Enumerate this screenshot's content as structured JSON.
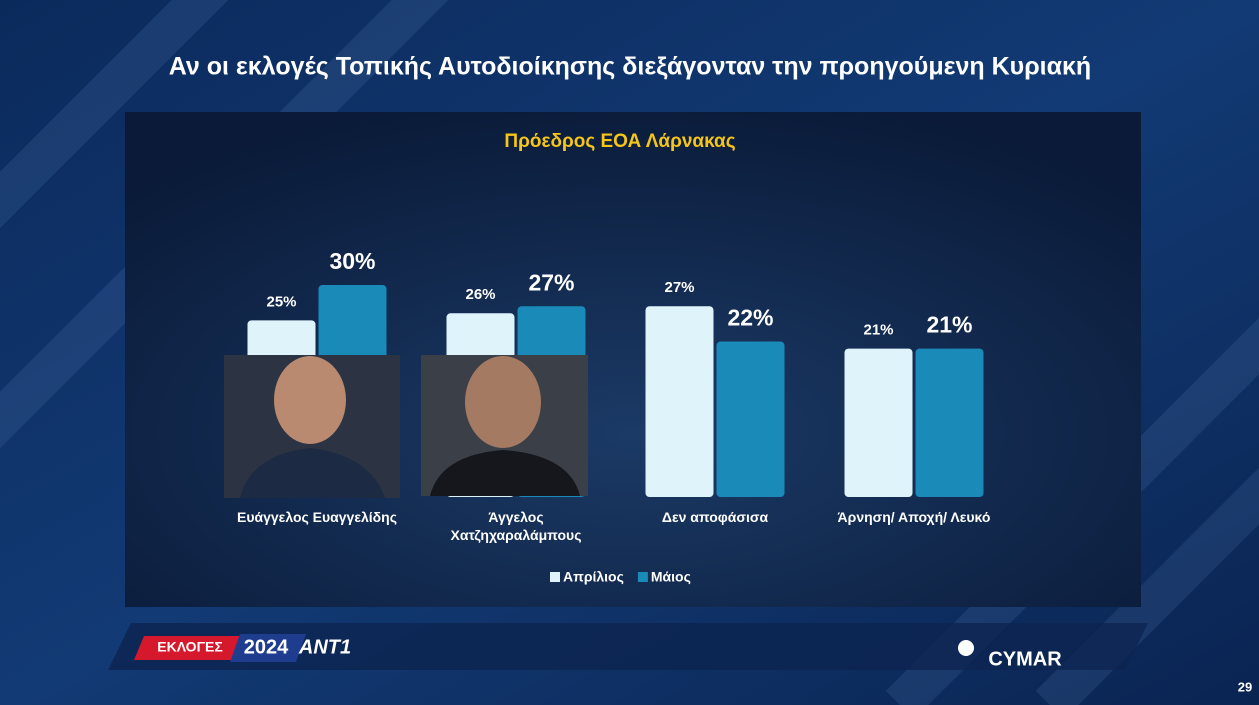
{
  "title": "Αν οι εκλογές Τοπικής Αυτοδιοίκησης διεξάγονταν την προηγούμενη Κυριακή",
  "chart_data": {
    "type": "bar",
    "title": "Πρόεδρος ΕΟΑ Λάρνακας",
    "categories": [
      "Ευάγγελος Ευαγγελίδης",
      "Άγγελος Χατζηχαραλάμπους",
      "Δεν αποφάσισα",
      "Άρνηση/ Αποχή/ Λευκό"
    ],
    "series": [
      {
        "name": "Απρίλιος",
        "color": "#dff3fb",
        "values": [
          25,
          26,
          27,
          21
        ],
        "value_labels": [
          "25%",
          "26%",
          "27%",
          "21%"
        ]
      },
      {
        "name": "Μάιος",
        "color": "#1a8ab8",
        "values": [
          30,
          27,
          22,
          21
        ],
        "value_labels": [
          "30%",
          "27%",
          "22%",
          "21%"
        ]
      }
    ],
    "legend": "bottom"
  },
  "footer": {
    "election": "ΕΚΛΟΓΕΣ",
    "year": "2024",
    "channel": "ANT1",
    "pollster": "CYMAR",
    "page": "29"
  }
}
